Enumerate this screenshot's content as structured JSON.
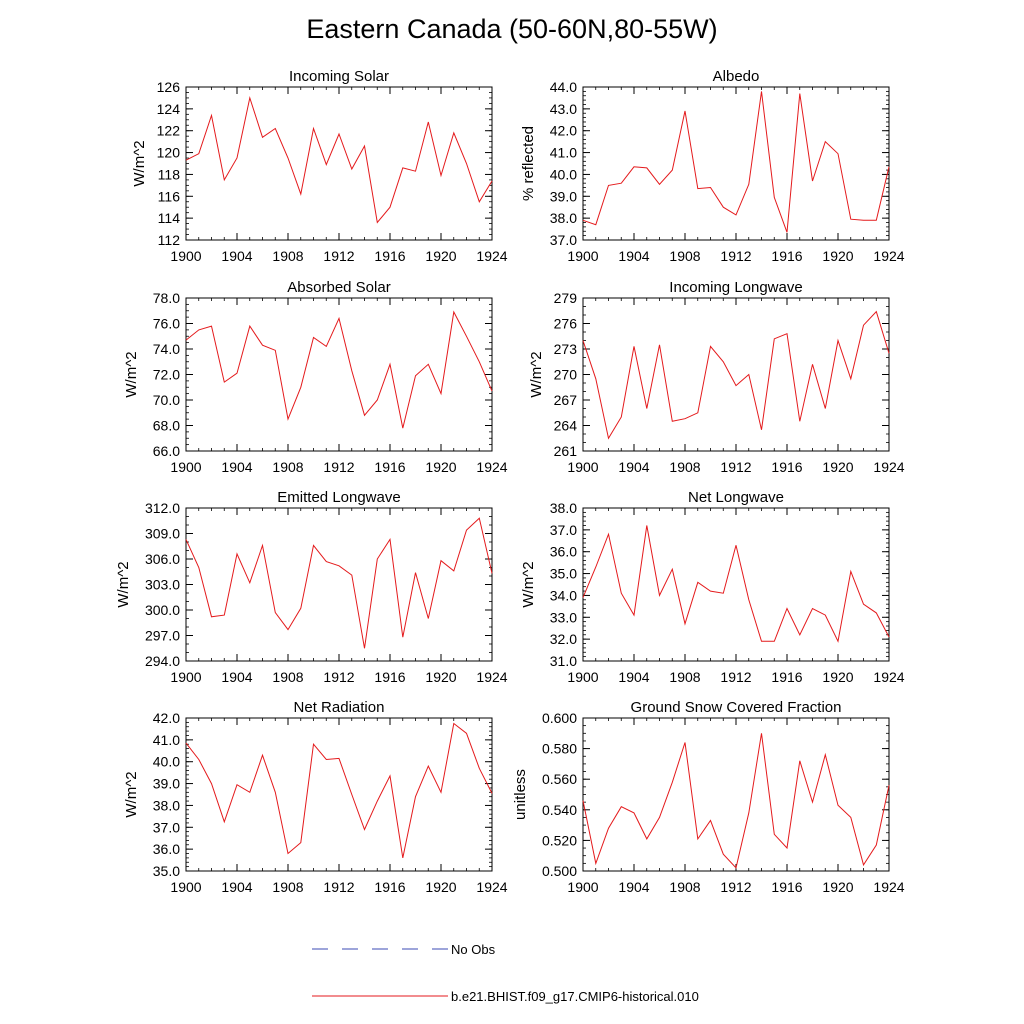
{
  "figure": {
    "title": "Eastern Canada (50-60N,80-55W)"
  },
  "chart_data": [
    {
      "type": "line",
      "title": "Incoming Solar",
      "ylabel": "W/m^2",
      "ylim": [
        112,
        126
      ],
      "yticks": [
        "112",
        "114",
        "116",
        "118",
        "120",
        "122",
        "124",
        "126"
      ],
      "yminor_step": 0.5,
      "xlim": [
        1900,
        1924
      ],
      "xticks": [
        "1900",
        "1904",
        "1908",
        "1912",
        "1916",
        "1920",
        "1924"
      ],
      "series": [
        {
          "color": "#e41a1c",
          "x": [
            1900,
            1901,
            1902,
            1903,
            1904,
            1905,
            1906,
            1907,
            1908,
            1909,
            1910,
            1911,
            1912,
            1913,
            1914,
            1915,
            1916,
            1917,
            1918,
            1919,
            1920,
            1921,
            1922,
            1923,
            1924
          ],
          "values": [
            119.3,
            119.9,
            123.4,
            117.5,
            119.5,
            125.0,
            121.4,
            122.2,
            119.5,
            116.2,
            122.2,
            118.9,
            121.7,
            118.5,
            120.6,
            113.6,
            115.0,
            118.6,
            118.3,
            122.8,
            117.9,
            121.8,
            119.0,
            115.5,
            117.4
          ]
        }
      ]
    },
    {
      "type": "line",
      "title": "Albedo",
      "ylabel": "% reflected",
      "ylim": [
        37,
        44
      ],
      "yticks": [
        "37.0",
        "38.0",
        "39.0",
        "40.0",
        "41.0",
        "42.0",
        "43.0",
        "44.0"
      ],
      "yminor_step": 0.2,
      "xlim": [
        1900,
        1924
      ],
      "xticks": [
        "1900",
        "1904",
        "1908",
        "1912",
        "1916",
        "1920",
        "1924"
      ],
      "series": [
        {
          "color": "#e41a1c",
          "x": [
            1900,
            1901,
            1902,
            1903,
            1904,
            1905,
            1906,
            1907,
            1908,
            1909,
            1910,
            1911,
            1912,
            1913,
            1914,
            1915,
            1916,
            1917,
            1918,
            1919,
            1920,
            1921,
            1922,
            1923,
            1924
          ],
          "values": [
            37.9,
            37.7,
            39.5,
            39.6,
            40.35,
            40.3,
            39.55,
            40.2,
            42.9,
            39.35,
            39.4,
            38.5,
            38.15,
            39.55,
            43.8,
            38.95,
            37.35,
            43.7,
            39.7,
            41.5,
            40.95,
            37.95,
            37.9,
            37.9,
            40.35
          ]
        }
      ]
    },
    {
      "type": "line",
      "title": "Absorbed Solar",
      "ylabel": "W/m^2",
      "ylim": [
        66,
        78
      ],
      "yticks": [
        "66.0",
        "68.0",
        "70.0",
        "72.0",
        "74.0",
        "76.0",
        "78.0"
      ],
      "yminor_step": 0.5,
      "xlim": [
        1900,
        1924
      ],
      "xticks": [
        "1900",
        "1904",
        "1908",
        "1912",
        "1916",
        "1920",
        "1924"
      ],
      "series": [
        {
          "color": "#e41a1c",
          "x": [
            1900,
            1901,
            1902,
            1903,
            1904,
            1905,
            1906,
            1907,
            1908,
            1909,
            1910,
            1911,
            1912,
            1913,
            1914,
            1915,
            1916,
            1917,
            1918,
            1919,
            1920,
            1921,
            1922,
            1923,
            1924
          ],
          "values": [
            74.7,
            75.5,
            75.8,
            71.4,
            72.1,
            75.8,
            74.3,
            73.9,
            68.5,
            71.0,
            74.9,
            74.2,
            76.4,
            72.3,
            68.8,
            70.0,
            72.8,
            67.8,
            71.9,
            72.8,
            70.5,
            76.9,
            75.0,
            73.0,
            70.7
          ]
        }
      ]
    },
    {
      "type": "line",
      "title": "Incoming Longwave",
      "ylabel": "W/m^2",
      "ylim": [
        261,
        279
      ],
      "yticks": [
        "261",
        "264",
        "267",
        "270",
        "273",
        "276",
        "279"
      ],
      "yminor_step": 1,
      "xlim": [
        1900,
        1924
      ],
      "xticks": [
        "1900",
        "1904",
        "1908",
        "1912",
        "1916",
        "1920",
        "1924"
      ],
      "series": [
        {
          "color": "#e41a1c",
          "x": [
            1900,
            1901,
            1902,
            1903,
            1904,
            1905,
            1906,
            1907,
            1908,
            1909,
            1910,
            1911,
            1912,
            1913,
            1914,
            1915,
            1916,
            1917,
            1918,
            1919,
            1920,
            1921,
            1922,
            1923,
            1924
          ],
          "values": [
            274.0,
            269.5,
            262.5,
            265.0,
            273.3,
            266.0,
            273.5,
            264.5,
            264.8,
            265.5,
            273.3,
            271.5,
            268.7,
            270.0,
            263.5,
            274.2,
            274.8,
            264.5,
            271.2,
            266.0,
            274.0,
            269.5,
            275.8,
            277.4,
            272.5
          ]
        }
      ]
    },
    {
      "type": "line",
      "title": "Emitted Longwave",
      "ylabel": "W/m^2",
      "ylim": [
        294,
        312
      ],
      "yticks": [
        "294.0",
        "297.0",
        "300.0",
        "303.0",
        "306.0",
        "309.0",
        "312.0"
      ],
      "yminor_step": 1,
      "xlim": [
        1900,
        1924
      ],
      "xticks": [
        "1900",
        "1904",
        "1908",
        "1912",
        "1916",
        "1920",
        "1924"
      ],
      "series": [
        {
          "color": "#e41a1c",
          "x": [
            1900,
            1901,
            1902,
            1903,
            1904,
            1905,
            1906,
            1907,
            1908,
            1909,
            1910,
            1911,
            1912,
            1913,
            1914,
            1915,
            1916,
            1917,
            1918,
            1919,
            1920,
            1921,
            1922,
            1923,
            1924
          ],
          "values": [
            308.3,
            305.0,
            299.2,
            299.4,
            306.6,
            303.2,
            307.6,
            299.7,
            297.7,
            300.2,
            307.6,
            305.7,
            305.2,
            304.1,
            295.5,
            306.0,
            308.3,
            296.8,
            304.4,
            299.0,
            305.8,
            304.6,
            309.4,
            310.8,
            304.3
          ]
        }
      ]
    },
    {
      "type": "line",
      "title": "Net Longwave",
      "ylabel": "W/m^2",
      "ylim": [
        31,
        38
      ],
      "yticks": [
        "31.0",
        "32.0",
        "33.0",
        "34.0",
        "35.0",
        "36.0",
        "37.0",
        "38.0"
      ],
      "yminor_step": 0.2,
      "xlim": [
        1900,
        1924
      ],
      "xticks": [
        "1900",
        "1904",
        "1908",
        "1912",
        "1916",
        "1920",
        "1924"
      ],
      "series": [
        {
          "color": "#e41a1c",
          "x": [
            1900,
            1901,
            1902,
            1903,
            1904,
            1905,
            1906,
            1907,
            1908,
            1909,
            1910,
            1911,
            1912,
            1913,
            1914,
            1915,
            1916,
            1917,
            1918,
            1919,
            1920,
            1921,
            1922,
            1923,
            1924
          ],
          "values": [
            33.9,
            35.3,
            36.8,
            34.1,
            33.1,
            37.2,
            34.0,
            35.2,
            32.7,
            34.6,
            34.2,
            34.1,
            36.3,
            33.8,
            31.9,
            31.9,
            33.4,
            32.2,
            33.4,
            33.1,
            31.9,
            35.1,
            33.6,
            33.2,
            32.1
          ]
        }
      ]
    },
    {
      "type": "line",
      "title": "Net Radiation",
      "ylabel": "W/m^2",
      "ylim": [
        35,
        42
      ],
      "yticks": [
        "35.0",
        "36.0",
        "37.0",
        "38.0",
        "39.0",
        "40.0",
        "41.0",
        "42.0"
      ],
      "yminor_step": 0.2,
      "xlim": [
        1900,
        1924
      ],
      "xticks": [
        "1900",
        "1904",
        "1908",
        "1912",
        "1916",
        "1920",
        "1924"
      ],
      "series": [
        {
          "color": "#e41a1c",
          "x": [
            1900,
            1901,
            1902,
            1903,
            1904,
            1905,
            1906,
            1907,
            1908,
            1909,
            1910,
            1911,
            1912,
            1913,
            1914,
            1915,
            1916,
            1917,
            1918,
            1919,
            1920,
            1921,
            1922,
            1923,
            1924
          ],
          "values": [
            40.85,
            40.1,
            39.0,
            37.25,
            38.95,
            38.6,
            40.3,
            38.6,
            35.8,
            36.3,
            40.8,
            40.1,
            40.15,
            38.5,
            36.9,
            38.2,
            39.35,
            35.6,
            38.4,
            39.8,
            38.6,
            41.75,
            41.3,
            39.7,
            38.55
          ]
        }
      ]
    },
    {
      "type": "line",
      "title": "Ground Snow Covered Fraction",
      "ylabel": "unitless",
      "ylim": [
        0.5,
        0.6
      ],
      "yticks": [
        "0.500",
        "0.520",
        "0.540",
        "0.560",
        "0.580",
        "0.600"
      ],
      "yminor_step": 0.005,
      "xlim": [
        1900,
        1924
      ],
      "xticks": [
        "1900",
        "1904",
        "1908",
        "1912",
        "1916",
        "1920",
        "1924"
      ],
      "series": [
        {
          "color": "#e41a1c",
          "x": [
            1900,
            1901,
            1902,
            1903,
            1904,
            1905,
            1906,
            1907,
            1908,
            1909,
            1910,
            1911,
            1912,
            1913,
            1914,
            1915,
            1916,
            1917,
            1918,
            1919,
            1920,
            1921,
            1922,
            1923,
            1924
          ],
          "values": [
            0.546,
            0.505,
            0.528,
            0.542,
            0.538,
            0.521,
            0.535,
            0.558,
            0.584,
            0.521,
            0.533,
            0.511,
            0.502,
            0.538,
            0.59,
            0.524,
            0.515,
            0.572,
            0.545,
            0.576,
            0.543,
            0.535,
            0.504,
            0.517,
            0.556
          ]
        }
      ]
    }
  ],
  "legend": {
    "items": [
      {
        "label": "No Obs",
        "color": "#3b4bb5",
        "style": "dashed"
      },
      {
        "label": "b.e21.BHIST.f09_g17.CMIP6-historical.010",
        "color": "#e41a1c",
        "style": "solid"
      }
    ]
  }
}
